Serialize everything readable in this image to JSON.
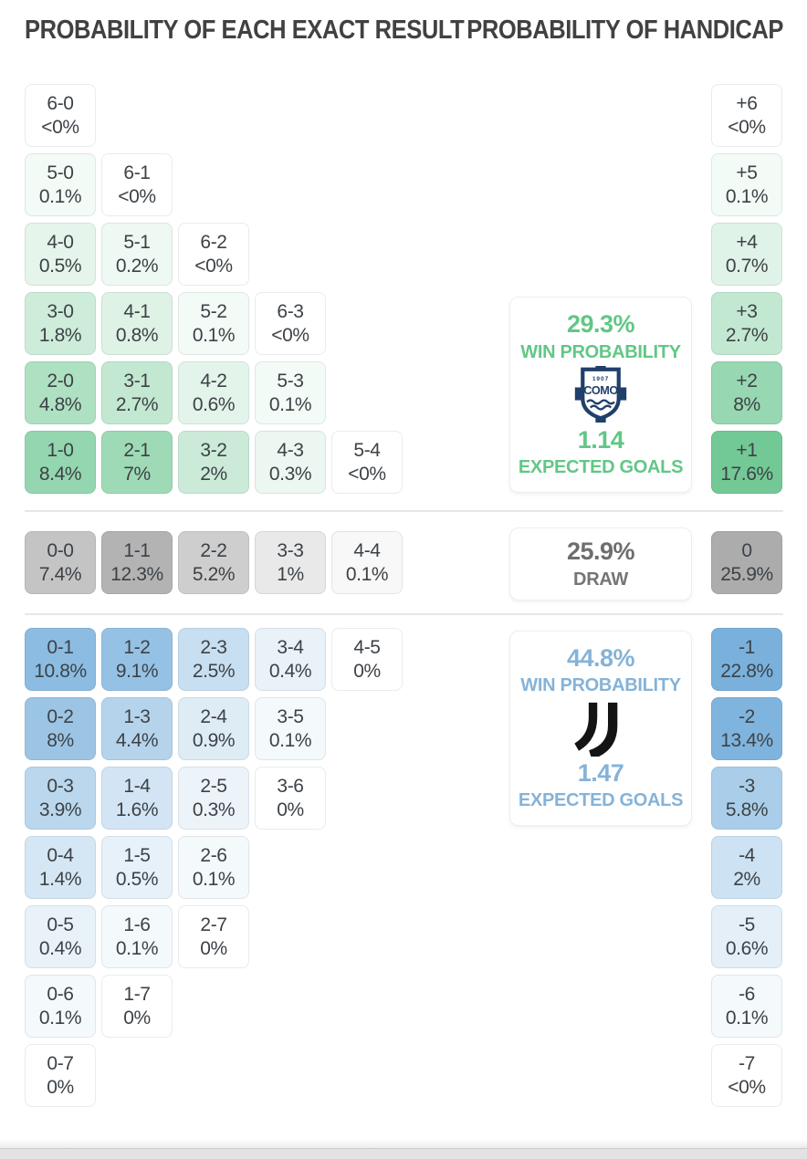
{
  "page": {
    "left_header": "PROBABILITY OF EACH EXACT RESULT",
    "right_header": "PROBABILITY OF HANDICAP"
  },
  "colors": {
    "header_text": "#414141",
    "cell_text": "#3d4247",
    "home_text": "#61c786",
    "away_text": "#85b3d8",
    "draw_text": "#757575",
    "home_cell_base": "#3cb46c",
    "away_cell_base": "#4593cf",
    "draw_cell_base": "#8c8c8c",
    "como_navy": "#20406a",
    "juve_black": "#141414"
  },
  "chart_data": [
    {
      "type": "heatmap",
      "title": "PROBABILITY OF EACH EXACT RESULT",
      "rows": [
        {
          "section": "home",
          "cells": [
            {
              "score": "6-0",
              "pct": "<0%",
              "value": 0
            }
          ]
        },
        {
          "section": "home",
          "cells": [
            {
              "score": "5-0",
              "pct": "0.1%",
              "value": 0.1
            },
            {
              "score": "6-1",
              "pct": "<0%",
              "value": 0
            }
          ]
        },
        {
          "section": "home",
          "cells": [
            {
              "score": "4-0",
              "pct": "0.5%",
              "value": 0.5
            },
            {
              "score": "5-1",
              "pct": "0.2%",
              "value": 0.2
            },
            {
              "score": "6-2",
              "pct": "<0%",
              "value": 0
            }
          ]
        },
        {
          "section": "home",
          "cells": [
            {
              "score": "3-0",
              "pct": "1.8%",
              "value": 1.8
            },
            {
              "score": "4-1",
              "pct": "0.8%",
              "value": 0.8
            },
            {
              "score": "5-2",
              "pct": "0.1%",
              "value": 0.1
            },
            {
              "score": "6-3",
              "pct": "<0%",
              "value": 0
            }
          ]
        },
        {
          "section": "home",
          "cells": [
            {
              "score": "2-0",
              "pct": "4.8%",
              "value": 4.8
            },
            {
              "score": "3-1",
              "pct": "2.7%",
              "value": 2.7
            },
            {
              "score": "4-2",
              "pct": "0.6%",
              "value": 0.6
            },
            {
              "score": "5-3",
              "pct": "0.1%",
              "value": 0.1
            }
          ]
        },
        {
          "section": "home",
          "cells": [
            {
              "score": "1-0",
              "pct": "8.4%",
              "value": 8.4
            },
            {
              "score": "2-1",
              "pct": "7%",
              "value": 7
            },
            {
              "score": "3-2",
              "pct": "2%",
              "value": 2
            },
            {
              "score": "4-3",
              "pct": "0.3%",
              "value": 0.3
            },
            {
              "score": "5-4",
              "pct": "<0%",
              "value": 0
            }
          ]
        },
        {
          "section": "draw",
          "cells": [
            {
              "score": "0-0",
              "pct": "7.4%",
              "value": 7.4
            },
            {
              "score": "1-1",
              "pct": "12.3%",
              "value": 12.3
            },
            {
              "score": "2-2",
              "pct": "5.2%",
              "value": 5.2
            },
            {
              "score": "3-3",
              "pct": "1%",
              "value": 1
            },
            {
              "score": "4-4",
              "pct": "0.1%",
              "value": 0.1
            }
          ]
        },
        {
          "section": "away",
          "cells": [
            {
              "score": "0-1",
              "pct": "10.8%",
              "value": 10.8
            },
            {
              "score": "1-2",
              "pct": "9.1%",
              "value": 9.1
            },
            {
              "score": "2-3",
              "pct": "2.5%",
              "value": 2.5
            },
            {
              "score": "3-4",
              "pct": "0.4%",
              "value": 0.4
            },
            {
              "score": "4-5",
              "pct": "0%",
              "value": 0
            }
          ]
        },
        {
          "section": "away",
          "cells": [
            {
              "score": "0-2",
              "pct": "8%",
              "value": 8
            },
            {
              "score": "1-3",
              "pct": "4.4%",
              "value": 4.4
            },
            {
              "score": "2-4",
              "pct": "0.9%",
              "value": 0.9
            },
            {
              "score": "3-5",
              "pct": "0.1%",
              "value": 0.1
            }
          ]
        },
        {
          "section": "away",
          "cells": [
            {
              "score": "0-3",
              "pct": "3.9%",
              "value": 3.9
            },
            {
              "score": "1-4",
              "pct": "1.6%",
              "value": 1.6
            },
            {
              "score": "2-5",
              "pct": "0.3%",
              "value": 0.3
            },
            {
              "score": "3-6",
              "pct": "0%",
              "value": 0
            }
          ]
        },
        {
          "section": "away",
          "cells": [
            {
              "score": "0-4",
              "pct": "1.4%",
              "value": 1.4
            },
            {
              "score": "1-5",
              "pct": "0.5%",
              "value": 0.5
            },
            {
              "score": "2-6",
              "pct": "0.1%",
              "value": 0.1
            }
          ]
        },
        {
          "section": "away",
          "cells": [
            {
              "score": "0-5",
              "pct": "0.4%",
              "value": 0.4
            },
            {
              "score": "1-6",
              "pct": "0.1%",
              "value": 0.1
            },
            {
              "score": "2-7",
              "pct": "0%",
              "value": 0
            }
          ]
        },
        {
          "section": "away",
          "cells": [
            {
              "score": "0-6",
              "pct": "0.1%",
              "value": 0.1
            },
            {
              "score": "1-7",
              "pct": "0%",
              "value": 0
            }
          ]
        },
        {
          "section": "away",
          "cells": [
            {
              "score": "0-7",
              "pct": "0%",
              "value": 0
            }
          ]
        }
      ]
    },
    {
      "type": "heatmap",
      "title": "PROBABILITY OF HANDICAP",
      "items": [
        {
          "line": "+6",
          "pct": "<0%",
          "value": 0,
          "section": "home"
        },
        {
          "line": "+5",
          "pct": "0.1%",
          "value": 0.1,
          "section": "home"
        },
        {
          "line": "+4",
          "pct": "0.7%",
          "value": 0.7,
          "section": "home"
        },
        {
          "line": "+3",
          "pct": "2.7%",
          "value": 2.7,
          "section": "home"
        },
        {
          "line": "+2",
          "pct": "8%",
          "value": 8,
          "section": "home"
        },
        {
          "line": "+1",
          "pct": "17.6%",
          "value": 17.6,
          "section": "home"
        },
        {
          "line": "0",
          "pct": "25.9%",
          "value": 25.9,
          "section": "draw"
        },
        {
          "line": "-1",
          "pct": "22.8%",
          "value": 22.8,
          "section": "away"
        },
        {
          "line": "-2",
          "pct": "13.4%",
          "value": 13.4,
          "section": "away"
        },
        {
          "line": "-3",
          "pct": "5.8%",
          "value": 5.8,
          "section": "away"
        },
        {
          "line": "-4",
          "pct": "2%",
          "value": 2,
          "section": "away"
        },
        {
          "line": "-5",
          "pct": "0.6%",
          "value": 0.6,
          "section": "away"
        },
        {
          "line": "-6",
          "pct": "0.1%",
          "value": 0.1,
          "section": "away"
        },
        {
          "line": "-7",
          "pct": "<0%",
          "value": 0,
          "section": "away"
        }
      ]
    }
  ],
  "summary": {
    "home": {
      "team": "Como",
      "win_pct": "29.3%",
      "win_label": "WIN PROBABILITY",
      "expected_goals": "1.14",
      "eg_label": "EXPECTED GOALS",
      "badge_year": "1907",
      "badge_name": "COMO"
    },
    "draw": {
      "pct": "25.9%",
      "label": "DRAW"
    },
    "away": {
      "team": "Juventus",
      "win_pct": "44.8%",
      "win_label": "WIN PROBABILITY",
      "expected_goals": "1.47",
      "eg_label": "EXPECTED GOALS"
    }
  }
}
